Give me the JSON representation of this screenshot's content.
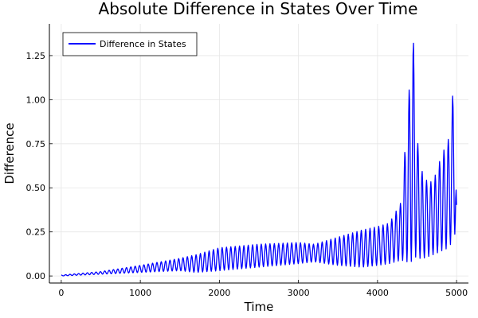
{
  "chart_data": {
    "type": "line",
    "title": "Absolute Difference in States Over Time",
    "xlabel": "Time",
    "ylabel": "Difference",
    "xlim": [
      -150,
      5150
    ],
    "ylim": [
      -0.04,
      1.43
    ],
    "xticks": [
      0,
      1000,
      2000,
      3000,
      4000,
      5000
    ],
    "xtick_labels": [
      "0",
      "1000",
      "2000",
      "3000",
      "4000",
      "5000"
    ],
    "yticks": [
      0.0,
      0.25,
      0.5,
      0.75,
      1.0,
      1.25
    ],
    "ytick_labels": [
      "0.00",
      "0.25",
      "0.50",
      "0.75",
      "1.00",
      "1.25"
    ],
    "grid": true,
    "legend_position": "top-left",
    "series": [
      {
        "name": "Difference in States",
        "color": "#0000ff",
        "oscillation_period": 55,
        "envelope": {
          "x": [
            0,
            500,
            1000,
            1500,
            1700,
            2000,
            2500,
            3000,
            3200,
            3500,
            3800,
            4000,
            4150,
            4300,
            4380,
            4420,
            4450,
            4500,
            4580,
            4700,
            4800,
            4900,
            4950,
            4980,
            5000
          ],
          "upper": [
            0.005,
            0.025,
            0.06,
            0.1,
            0.12,
            0.16,
            0.18,
            0.19,
            0.18,
            0.22,
            0.26,
            0.28,
            0.3,
            0.42,
            0.92,
            1.19,
            1.38,
            0.78,
            0.55,
            0.53,
            0.67,
            0.78,
            1.02,
            1.09,
            0.4
          ],
          "lower": [
            0.0,
            0.01,
            0.02,
            0.03,
            0.02,
            0.03,
            0.05,
            0.07,
            0.08,
            0.06,
            0.05,
            0.06,
            0.07,
            0.09,
            0.08,
            0.07,
            0.12,
            0.1,
            0.1,
            0.12,
            0.14,
            0.16,
            0.2,
            0.24,
            0.27
          ]
        }
      }
    ]
  }
}
